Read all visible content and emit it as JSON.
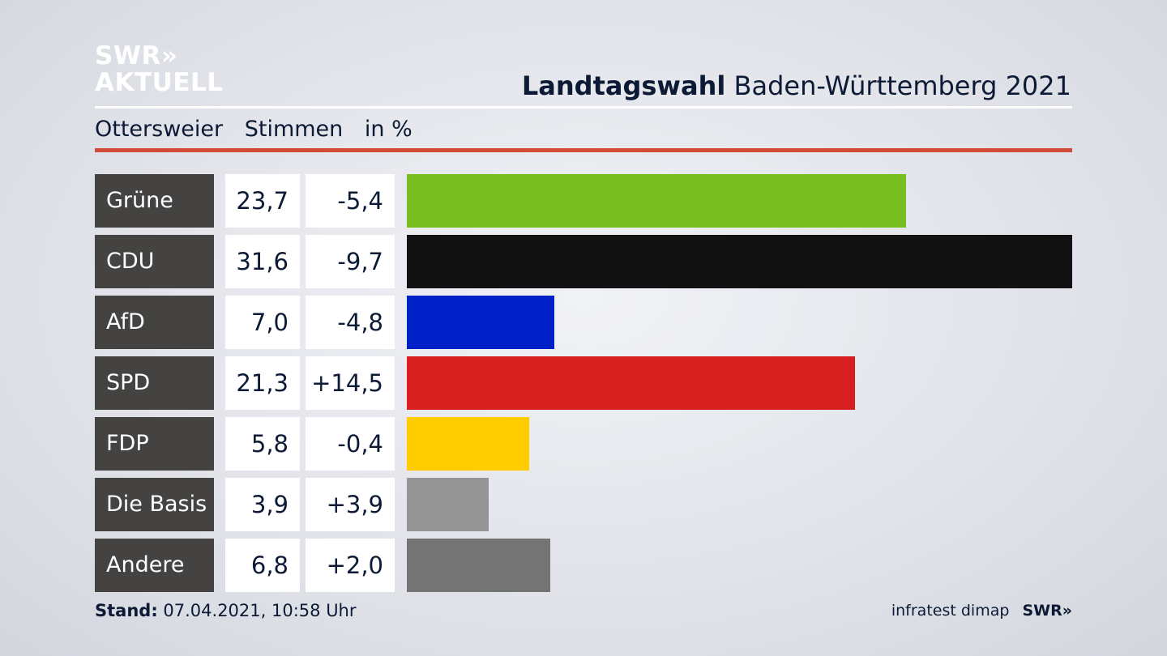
{
  "brand": {
    "logo_line1": "SWR»",
    "logo_line2": "AKTUELL"
  },
  "header": {
    "title_bold": "Landtagswahl",
    "title_rest": "Baden-Württemberg 2021"
  },
  "subheader": {
    "location": "Ottersweier",
    "metric": "Stimmen",
    "unit": "in %"
  },
  "chart_data": {
    "type": "bar",
    "orientation": "horizontal",
    "categories": [
      "Grüne",
      "CDU",
      "AfD",
      "SPD",
      "FDP",
      "Die Basis",
      "Andere"
    ],
    "values_text": [
      "23,7",
      "31,6",
      "7,0",
      "21,3",
      "5,8",
      "3,9",
      "6,8"
    ],
    "changes_text": [
      "-5,4",
      "-9,7",
      "-4,8",
      "+14,5",
      "-0,4",
      "+3,9",
      "+2,0"
    ],
    "values": [
      23.7,
      31.6,
      7.0,
      21.3,
      5.8,
      3.9,
      6.8
    ],
    "changes": [
      -5.4,
      -9.7,
      -4.8,
      14.5,
      -0.4,
      3.9,
      2.0
    ],
    "colors": [
      "#78be20",
      "#121212",
      "#0021c8",
      "#d71f20",
      "#ffcc00",
      "#949494",
      "#747474"
    ],
    "xlim": [
      0,
      31.6
    ],
    "grid": false,
    "legend": "none"
  },
  "footer": {
    "stand_label": "Stand:",
    "stand_value": "07.04.2021, 10:58 Uhr",
    "source": "infratest dimap",
    "source_brand": "SWR»"
  }
}
